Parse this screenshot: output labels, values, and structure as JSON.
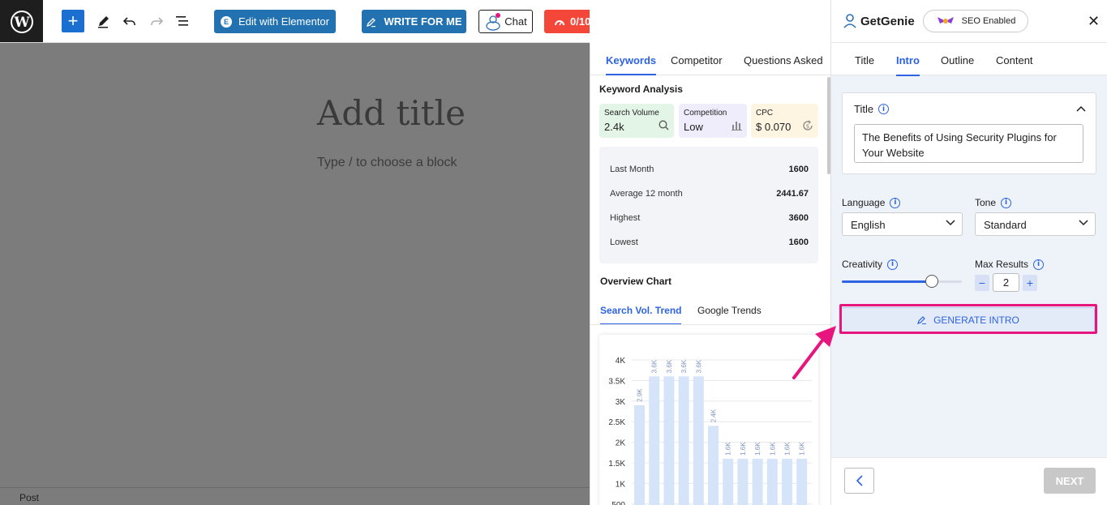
{
  "toolbar": {
    "edit_elementor_label": "Edit with Elementor",
    "write_for_me_label": "WRITE FOR ME",
    "chat_label": "Chat",
    "score_label": "0/10"
  },
  "editor": {
    "title_placeholder": "Add title",
    "block_hint": "Type / to choose a block",
    "status_label": "Post"
  },
  "keyword_panel": {
    "tabs": [
      "Keywords",
      "Competitor",
      "Questions Asked"
    ],
    "section_title": "Keyword Analysis",
    "stats": [
      {
        "label": "Search Volume",
        "value": "2.4k",
        "color": "#e3f5e6",
        "icon": "search-icon"
      },
      {
        "label": "Competition",
        "value": "Low",
        "color": "#efedfb",
        "icon": "bar-chart-icon"
      },
      {
        "label": "CPC",
        "value": "$ 0.070",
        "color": "#fdf5e1",
        "icon": "dollar-refresh-icon"
      }
    ],
    "rows": [
      {
        "label": "Last Month",
        "value": "1600"
      },
      {
        "label": "Average 12 month",
        "value": "2441.67"
      },
      {
        "label": "Highest",
        "value": "3600"
      },
      {
        "label": "Lowest",
        "value": "1600"
      }
    ],
    "overview_title": "Overview Chart",
    "chart_tabs": [
      "Search Vol. Trend",
      "Google Trends"
    ]
  },
  "chart_data": {
    "type": "bar",
    "values": [
      2900,
      3600,
      3600,
      3600,
      3600,
      2400,
      1600,
      1600,
      1600,
      1600,
      1600,
      1600
    ],
    "data_labels": [
      "2.9K",
      "3.6K",
      "3.6K",
      "3.6K",
      "3.6K",
      "2.4K",
      "1.6K",
      "1.6K",
      "1.6K",
      "1.6K",
      "1.6K",
      "1.6K"
    ],
    "y_ticks": [
      "4K",
      "3.5K",
      "3K",
      "2.5K",
      "2K",
      "1.5K",
      "1K",
      "500"
    ],
    "ylim": [
      0,
      4000
    ],
    "bar_color": "#d6e4fa",
    "grid": true
  },
  "genie_panel": {
    "brand": "GetGenie",
    "seo_label": "SEO Enabled",
    "tabs": [
      "Title",
      "Intro",
      "Outline",
      "Content"
    ],
    "title_label": "Title",
    "title_value": "The Benefits of Using Security Plugins for Your Website",
    "language_label": "Language",
    "language_value": "English",
    "tone_label": "Tone",
    "tone_value": "Standard",
    "creativity_label": "Creativity",
    "creativity_level": 0.75,
    "max_results_label": "Max Results",
    "max_results_value": "2",
    "generate_label": "GENERATE INTRO",
    "next_label": "NEXT",
    "accent": "#2d63e2",
    "highlight": "#e8157f"
  }
}
